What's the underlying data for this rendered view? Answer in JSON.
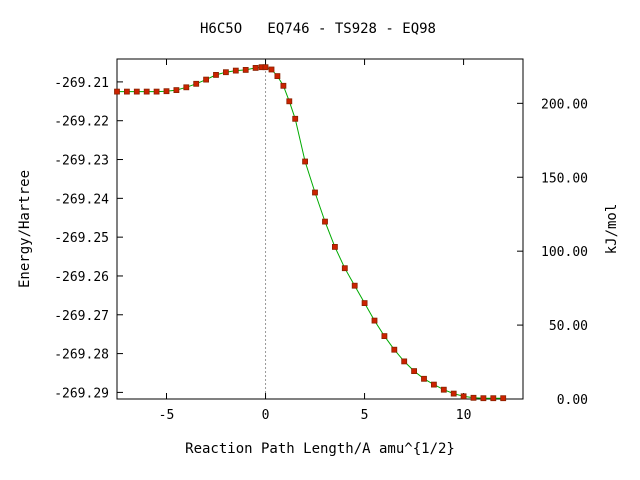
{
  "chart_data": {
    "type": "scatter",
    "title": "H6C5O   EQ746 - TS928 - EQ98",
    "xlabel": "Reaction Path Length/A amu^{1/2}",
    "ylabel": "Energy/Hartree",
    "y2label": "kJ/mol",
    "xlim": [
      -7.5,
      13
    ],
    "ylim": [
      -269.2917,
      -269.2041
    ],
    "x_ticks": [
      {
        "value": -5,
        "label": "-5"
      },
      {
        "value": 0,
        "label": "0"
      },
      {
        "value": 5,
        "label": "5"
      },
      {
        "value": 10,
        "label": "10"
      }
    ],
    "y_ticks": [
      {
        "value": -269.21,
        "label": "-269.21"
      },
      {
        "value": -269.22,
        "label": "-269.22"
      },
      {
        "value": -269.23,
        "label": "-269.23"
      },
      {
        "value": -269.24,
        "label": "-269.24"
      },
      {
        "value": -269.25,
        "label": "-269.25"
      },
      {
        "value": -269.26,
        "label": "-269.26"
      },
      {
        "value": -269.27,
        "label": "-269.27"
      },
      {
        "value": -269.28,
        "label": "-269.28"
      },
      {
        "value": -269.29,
        "label": "-269.29"
      }
    ],
    "y2_ticks": [
      {
        "value": 0.0,
        "label": "0.00"
      },
      {
        "value": 50.0,
        "label": "50.00"
      },
      {
        "value": 100.0,
        "label": "100.00"
      },
      {
        "value": 150.0,
        "label": "150.00"
      },
      {
        "value": 200.0,
        "label": "200.00"
      }
    ],
    "y2_zero_hartree": -269.2917,
    "hartree_to_kj_mol": 2625.5,
    "ts_marker_x": 0,
    "colors": {
      "points": "#cc2200",
      "point_edge": "#882200",
      "curve": "#00aa00",
      "ts_line": "#999999"
    },
    "series": [
      {
        "x": [
          -7.5,
          -7.0,
          -6.5,
          -6.0,
          -5.5,
          -5.0,
          -4.5,
          -4.0,
          -3.5,
          -3.0,
          -2.5,
          -2.0,
          -1.5,
          -1.0,
          -0.5,
          -0.2,
          0.0,
          0.3,
          0.6,
          0.9,
          1.2,
          1.5,
          2.0,
          2.5,
          3.0,
          3.5,
          4.0,
          4.5,
          5.0,
          5.5,
          6.0,
          6.5,
          7.0,
          7.5,
          8.0,
          8.5,
          9.0,
          9.5,
          10.0,
          10.5,
          11.0,
          11.5,
          12.0
        ],
        "y": [
          -269.2125,
          -269.2125,
          -269.2125,
          -269.2125,
          -269.2125,
          -269.2124,
          -269.2121,
          -269.2114,
          -269.2105,
          -269.2094,
          -269.2082,
          -269.2075,
          -269.2071,
          -269.2069,
          -269.2064,
          -269.2062,
          -269.2062,
          -269.2068,
          -269.2085,
          -269.211,
          -269.215,
          -269.2195,
          -269.2305,
          -269.2385,
          -269.246,
          -269.2525,
          -269.258,
          -269.2625,
          -269.267,
          -269.2715,
          -269.2755,
          -269.279,
          -269.282,
          -269.2845,
          -269.2865,
          -269.288,
          -269.2893,
          -269.2903,
          -269.291,
          -269.2914,
          -269.2915,
          -269.2915,
          -269.2915
        ]
      }
    ]
  }
}
